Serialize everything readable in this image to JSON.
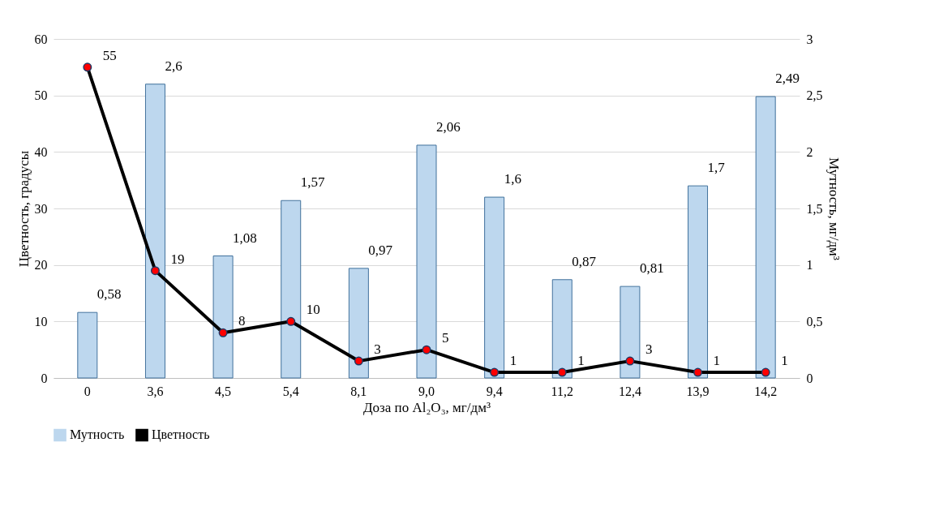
{
  "chart_data": {
    "type": "bar",
    "categories": [
      "0",
      "3,6",
      "4,5",
      "5,4",
      "8,1",
      "9,0",
      "9,4",
      "11,2",
      "12,4",
      "13,9",
      "14,2"
    ],
    "xlabel": "Доза по Al₂O₃, мг/дм³",
    "ylabel": "Цветность, градусы",
    "y2label": "Мутность, мг/дм³",
    "series": [
      {
        "name": "Мутность",
        "axis": "y2",
        "color": "#bdd7ee",
        "values": [
          0.58,
          2.6,
          1.08,
          1.57,
          0.97,
          2.06,
          1.6,
          0.87,
          0.81,
          1.7,
          2.49
        ],
        "value_labels": [
          "0,58",
          "2,6",
          "1,08",
          "1,57",
          "0,97",
          "2,06",
          "1,6",
          "0,87",
          "0,81",
          "1,7",
          "2,49"
        ]
      },
      {
        "name": "Цветность",
        "type": "line",
        "color": "#000000",
        "values": [
          55,
          19,
          8,
          10,
          3,
          5,
          1,
          1,
          3,
          1,
          1
        ],
        "value_labels": [
          "55",
          "19",
          "8",
          "10",
          "3",
          "5",
          "1",
          "1",
          "3",
          "1",
          "1"
        ]
      }
    ],
    "ylim": [
      0,
      60
    ],
    "yticks": [
      0,
      10,
      20,
      30,
      40,
      50,
      60
    ],
    "y2lim": [
      0,
      3
    ],
    "y2ticks": [
      0,
      {
        "value": 0.5,
        "label": "0,5"
      },
      1,
      {
        "value": 1.5,
        "label": "1,5"
      },
      2,
      {
        "value": 2.5,
        "label": "2,5"
      },
      3
    ],
    "grid": "y",
    "legend": "bottom",
    "marker": "circle",
    "line_style": "solid"
  }
}
